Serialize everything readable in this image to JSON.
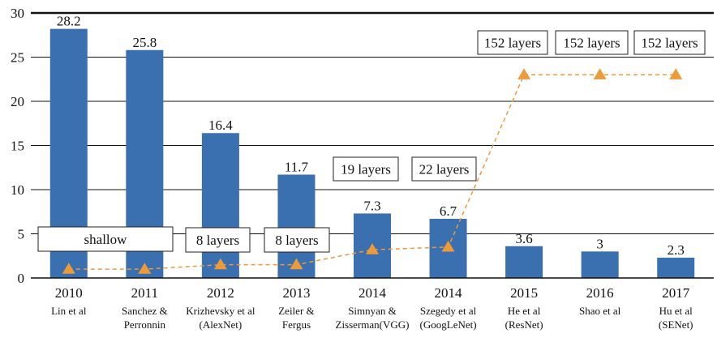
{
  "chart_data": {
    "type": "bar",
    "categories": [
      {
        "year": "2010",
        "lines": [
          "Lin et al"
        ]
      },
      {
        "year": "2011",
        "lines": [
          "Sanchez &",
          "Perronnin"
        ]
      },
      {
        "year": "2012",
        "lines": [
          "Krizhevsky et al",
          "(AlexNet)"
        ]
      },
      {
        "year": "2013",
        "lines": [
          "Zeiler &",
          "Fergus"
        ]
      },
      {
        "year": "2014",
        "lines": [
          "Simnyan &",
          "Zisserman(VGG)"
        ]
      },
      {
        "year": "2014",
        "lines": [
          "Szegedy et al",
          "(GoogLeNet)"
        ]
      },
      {
        "year": "2015",
        "lines": [
          "He et al",
          "(ResNet)"
        ]
      },
      {
        "year": "2016",
        "lines": [
          "Shao et al"
        ]
      },
      {
        "year": "2017",
        "lines": [
          "Hu et al",
          "(SENet)"
        ]
      }
    ],
    "series": [
      {
        "type": "bar",
        "values": [
          28.2,
          25.8,
          16.4,
          11.7,
          7.3,
          6.7,
          3.6,
          3,
          2.3
        ],
        "labels": [
          "28.2",
          "25.8",
          "16.4",
          "11.7",
          "7.3",
          "6.7",
          "3.6",
          "3",
          "2.3"
        ],
        "color": "#3a6fb0"
      },
      {
        "type": "line",
        "style": "dashed",
        "marker": "triangle",
        "values": [
          1,
          1,
          1.5,
          1.5,
          3.2,
          3.5,
          23,
          23,
          23
        ],
        "color": "#ed9a3a"
      }
    ],
    "ylim": [
      0,
      30
    ],
    "yticks": [
      0,
      5,
      10,
      15,
      20,
      25,
      30
    ],
    "grid": true,
    "annotations": [
      {
        "text": "shallow"
      },
      {
        "text": "8 layers"
      },
      {
        "text": "8 layers"
      },
      {
        "text": "19 layers"
      },
      {
        "text": "22 layers"
      },
      {
        "text": "152 layers"
      },
      {
        "text": "152 layers"
      },
      {
        "text": "152 layers"
      }
    ]
  }
}
